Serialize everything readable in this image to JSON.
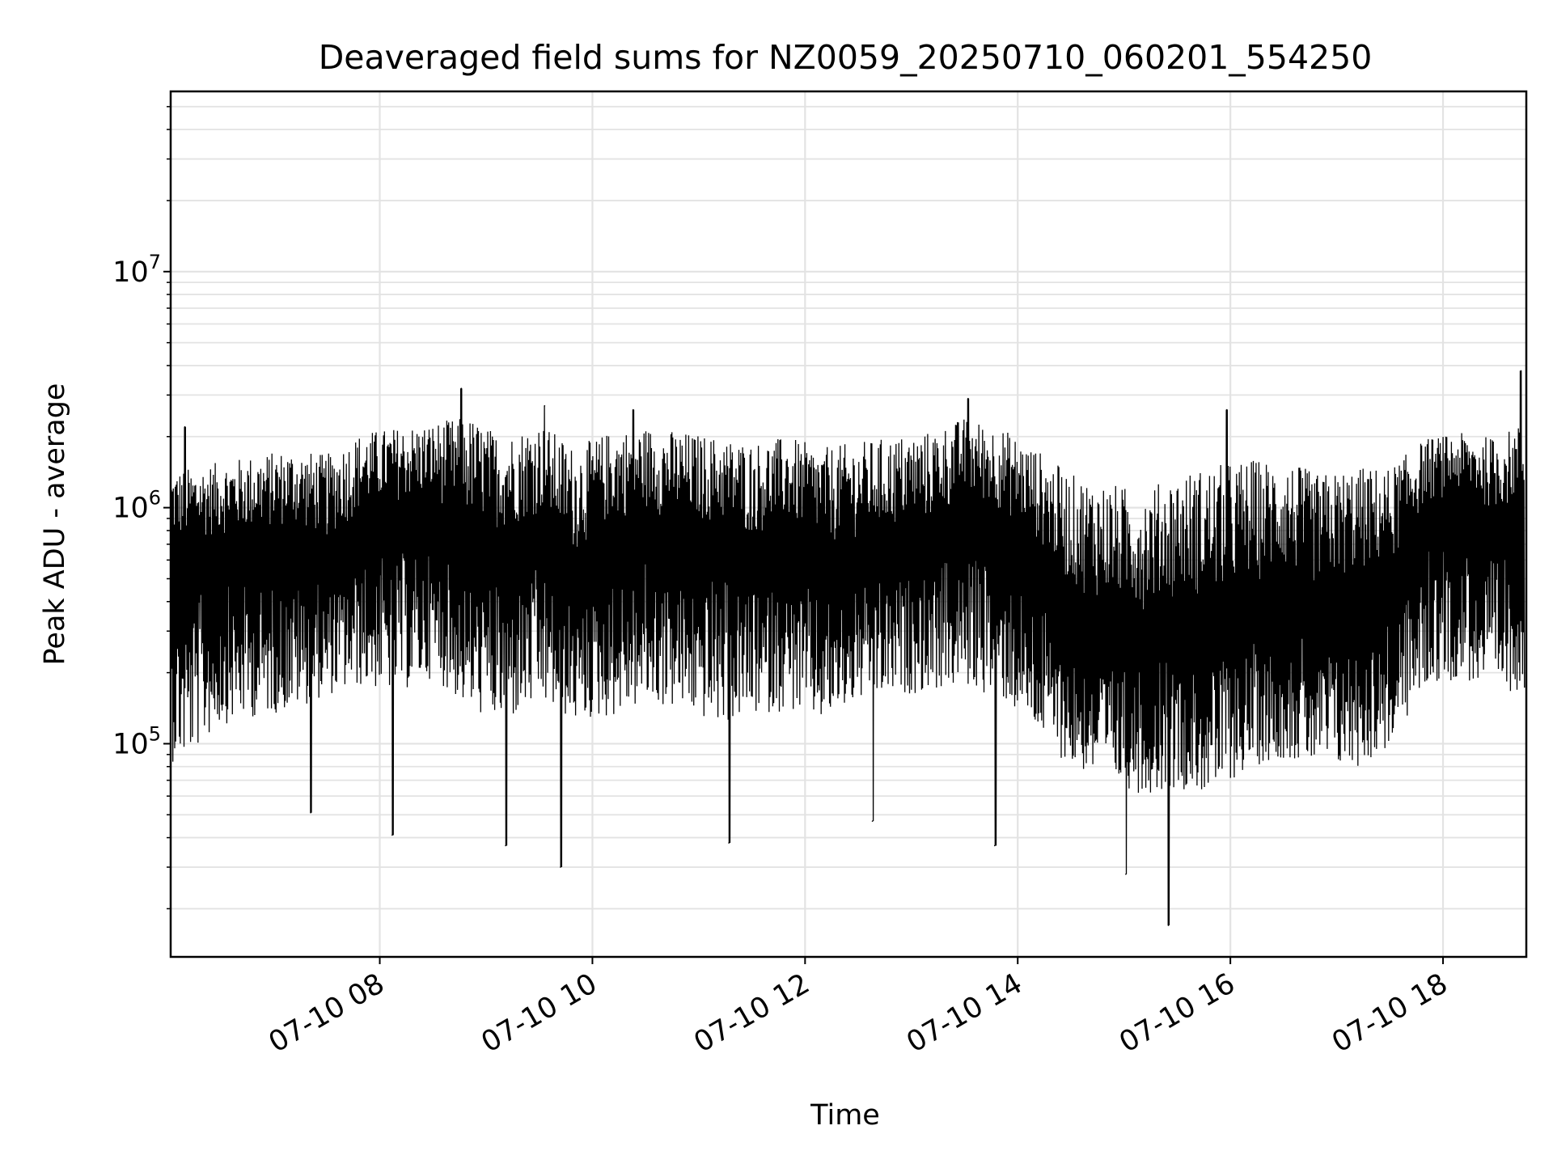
{
  "chart_data": {
    "type": "line",
    "title": "Deaveraged field sums for NZ0059_20250710_060201_554250",
    "xlabel": "Time",
    "ylabel": "Peak ADU - average",
    "yscale": "log",
    "grid": true,
    "legend": "none",
    "line_color": "#000000",
    "xlim": [
      "2025-07-10 06:02",
      "2025-07-10 18:47"
    ],
    "ylim": [
      12500,
      58000000
    ],
    "x_ticks": [
      {
        "label": "07-10 08",
        "time": "2025-07-10 08:00"
      },
      {
        "label": "07-10 10",
        "time": "2025-07-10 10:00"
      },
      {
        "label": "07-10 12",
        "time": "2025-07-10 12:00"
      },
      {
        "label": "07-10 14",
        "time": "2025-07-10 14:00"
      },
      {
        "label": "07-10 16",
        "time": "2025-07-10 16:00"
      },
      {
        "label": "07-10 18",
        "time": "2025-07-10 18:00"
      }
    ],
    "y_ticks": [
      {
        "base": "10",
        "exp": "5",
        "value": 100000
      },
      {
        "base": "10",
        "exp": "6",
        "value": 1000000
      },
      {
        "base": "10",
        "exp": "7",
        "value": 10000000
      }
    ],
    "series": [
      {
        "x": [
          "2025-07-10 06:10",
          "2025-07-10 06:30",
          "2025-07-10 06:50",
          "2025-07-10 07:10",
          "2025-07-10 07:30",
          "2025-07-10 07:50",
          "2025-07-10 08:10",
          "2025-07-10 08:30",
          "2025-07-10 08:50",
          "2025-07-10 09:10",
          "2025-07-10 09:30",
          "2025-07-10 09:50",
          "2025-07-10 10:10",
          "2025-07-10 10:30",
          "2025-07-10 10:50",
          "2025-07-10 11:10",
          "2025-07-10 11:30",
          "2025-07-10 11:50",
          "2025-07-10 12:10",
          "2025-07-10 12:30",
          "2025-07-10 12:50",
          "2025-07-10 13:10",
          "2025-07-10 13:30",
          "2025-07-10 13:50",
          "2025-07-10 14:10",
          "2025-07-10 14:30",
          "2025-07-10 14:50",
          "2025-07-10 15:10",
          "2025-07-10 15:30",
          "2025-07-10 15:50",
          "2025-07-10 16:10",
          "2025-07-10 16:30",
          "2025-07-10 16:50",
          "2025-07-10 17:10",
          "2025-07-10 17:30",
          "2025-07-10 17:50",
          "2025-07-10 18:10",
          "2025-07-10 18:30",
          "2025-07-10 18:45"
        ],
        "y": [
          600000,
          650000,
          650000,
          700000,
          600000,
          800000,
          900000,
          900000,
          700000,
          650000,
          750000,
          500000,
          700000,
          800000,
          700000,
          700000,
          600000,
          700000,
          550000,
          600000,
          650000,
          700000,
          900000,
          800000,
          600000,
          350000,
          300000,
          280000,
          320000,
          300000,
          350000,
          400000,
          350000,
          400000,
          450000,
          900000,
          1000000,
          800000,
          900000
        ],
        "y_low": [
          100000,
          140000,
          150000,
          160000,
          180000,
          200000,
          190000,
          220000,
          160000,
          140000,
          170000,
          140000,
          150000,
          170000,
          160000,
          140000,
          150000,
          160000,
          140000,
          170000,
          180000,
          190000,
          200000,
          180000,
          130000,
          90000,
          80000,
          70000,
          75000,
          70000,
          90000,
          100000,
          90000,
          90000,
          110000,
          200000,
          220000,
          180000,
          200000
        ],
        "y_high": [
          1400000,
          1500000,
          1600000,
          1700000,
          1600000,
          2000000,
          2100000,
          2200000,
          2300000,
          1900000,
          2200000,
          1700000,
          2000000,
          2100000,
          2000000,
          1900000,
          1800000,
          1900000,
          1700000,
          1800000,
          1900000,
          2000000,
          2300000,
          2100000,
          1700000,
          1300000,
          1200000,
          1100000,
          1300000,
          1400000,
          1500000,
          1500000,
          1300000,
          1400000,
          1400000,
          1900000,
          2000000,
          1900000,
          2200000
        ],
        "spikes": [
          {
            "x": "2025-07-10 06:10",
            "y": 2200000
          },
          {
            "x": "2025-07-10 07:21",
            "y": 51000
          },
          {
            "x": "2025-07-10 08:07",
            "y": 41000
          },
          {
            "x": "2025-07-10 08:46",
            "y": 3200000
          },
          {
            "x": "2025-07-10 09:11",
            "y": 37000
          },
          {
            "x": "2025-07-10 09:33",
            "y": 2700000
          },
          {
            "x": "2025-07-10 09:42",
            "y": 30000
          },
          {
            "x": "2025-07-10 10:23",
            "y": 2600000
          },
          {
            "x": "2025-07-10 11:17",
            "y": 38000
          },
          {
            "x": "2025-07-10 12:38",
            "y": 47000
          },
          {
            "x": "2025-07-10 13:32",
            "y": 2900000
          },
          {
            "x": "2025-07-10 13:47",
            "y": 37000
          },
          {
            "x": "2025-07-10 15:01",
            "y": 28000
          },
          {
            "x": "2025-07-10 15:25",
            "y": 17000
          },
          {
            "x": "2025-07-10 15:58",
            "y": 2600000
          },
          {
            "x": "2025-07-10 18:44",
            "y": 3800000
          }
        ]
      }
    ]
  }
}
